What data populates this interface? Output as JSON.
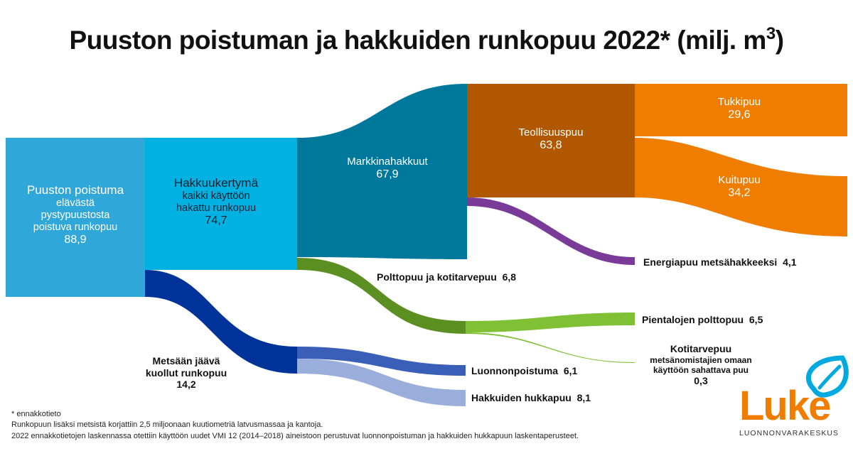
{
  "title": "Puuston poistuman ja hakkuiden runkopuu 2022* (milj. m",
  "title_sup": "3",
  "title_end": ")",
  "nodes": {
    "poistuma": {
      "name": "Puuston poistuma",
      "sub1": "elävästä",
      "sub2": "pystypuustosta",
      "sub3": "poistuva runkopuu",
      "value": "88,9",
      "color": "#30a7d9"
    },
    "hakkuukertyma": {
      "name": "Hakkuukertymä",
      "sub1": "kaikki käyttöön",
      "sub2": "hakattu runkopuu",
      "value": "74,7",
      "color": "#00b1e1"
    },
    "markkinahakkuut": {
      "name": "Markkinahakkuut",
      "value": "67,9",
      "color": "#00789c"
    },
    "teollisuuspuu": {
      "name": "Teollisuuspuu",
      "value": "63,8",
      "color": "#b15700"
    },
    "tukkipuu": {
      "name": "Tukkipuu",
      "value": "29,6",
      "color": "#ef7d00"
    },
    "kuitupuu": {
      "name": "Kuitupuu",
      "value": "34,2",
      "color": "#ef7d00"
    },
    "energiapuu": {
      "name": "Energiapuu metsähakkeeksi",
      "value": "4,1",
      "color": "#7a3b98"
    },
    "polttopuu": {
      "name": "Polttopuu ja kotitarvepuu",
      "value": "6,8",
      "color": "#5b8f22"
    },
    "pientalojen": {
      "name": "Pientalojen polttopuu",
      "value": "6,5",
      "color": "#7fc035"
    },
    "kotitarvepuu": {
      "name": "Kotitarvepuu",
      "sub1": "metsänomistajien omaan",
      "sub2": "käyttöön sahattava puu",
      "value": "0,3",
      "color": "#7fc035"
    },
    "metsaan": {
      "name": "Metsään jäävä",
      "sub1": "kuollut runkopuu",
      "value": "14,2",
      "color": "#003399"
    },
    "luonnonpoistuma": {
      "name": "Luonnonpoistuma",
      "value": "6,1",
      "color": "#3a5fb8"
    },
    "hukkapuu": {
      "name": "Hakkuiden hukkapuu",
      "value": "8,1",
      "color": "#9aaedb"
    }
  },
  "footnotes": [
    "* ennakkotieto",
    "Runkopuun lisäksi metsistä korjattiin 2,5 miljoonaan kuutiometriä latvusmassaa ja kantoja.",
    "2022 ennakkotietojen laskennassa otettiin käyttöön uudet VMI 12 (2014–2018) aineistoon perustuvat luonnonpoistuman ja hakkuiden hukkapuun laskentaperusteet."
  ],
  "logo": {
    "text": "Luke",
    "subtitle": "LUONNONVARAKESKUS",
    "color": "#f07d00",
    "icon_color": "#00a9e0",
    "icon": "leaf-icon"
  }
}
